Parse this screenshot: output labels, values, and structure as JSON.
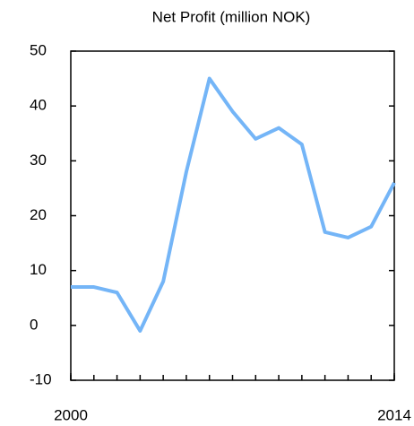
{
  "chart_data": {
    "type": "line",
    "title": "Net Profit (million NOK)",
    "x": [
      2000,
      2001,
      2002,
      2003,
      2004,
      2005,
      2006,
      2007,
      2008,
      2009,
      2010,
      2011,
      2012,
      2013,
      2014
    ],
    "series": [
      {
        "color": "#74b5f7",
        "values": [
          7,
          7,
          6,
          -1,
          8,
          28,
          45,
          39,
          34,
          36,
          33,
          17,
          16,
          18,
          26
        ]
      }
    ],
    "xlim": [
      2000,
      2014
    ],
    "xticks": [
      2000,
      2014
    ],
    "ylim": [
      -10,
      50
    ],
    "yticks": [
      -10,
      0,
      10,
      20,
      30,
      40,
      50
    ],
    "grid": false
  }
}
